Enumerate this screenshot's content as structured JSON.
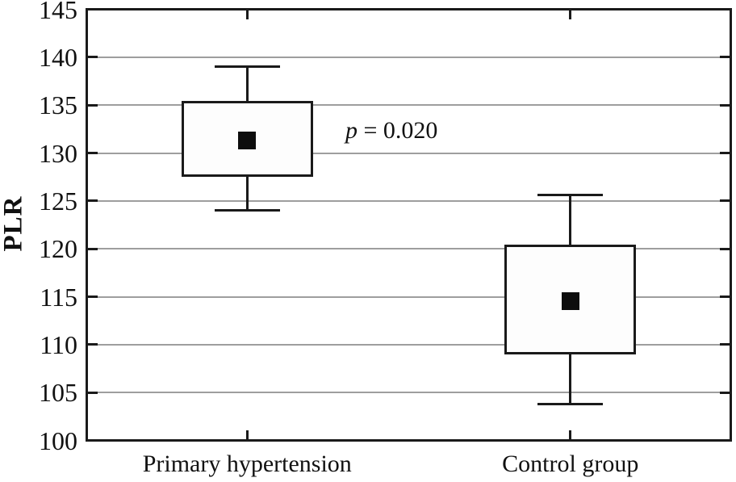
{
  "chart_data": {
    "type": "box",
    "title": "",
    "ylabel": "PLR",
    "xlabel": "",
    "ylim": [
      100,
      145
    ],
    "yticks": [
      100,
      105,
      110,
      115,
      120,
      125,
      130,
      135,
      140,
      145
    ],
    "grid": "horizontal gray lines at each y tick",
    "legend": "none",
    "marker_meaning": "filled black square = mean",
    "categories": [
      "Primary hypertension",
      "Control group"
    ],
    "groups": [
      {
        "label": "Primary hypertension",
        "whisker_low": 124.0,
        "box_low": 127.6,
        "mean": 131.3,
        "box_high": 135.3,
        "whisker_high": 139.0
      },
      {
        "label": "Control group",
        "whisker_low": 103.8,
        "box_low": 109.1,
        "mean": 114.5,
        "box_high": 120.3,
        "whisker_high": 125.6
      }
    ],
    "annotation": {
      "text": "p = 0.020",
      "symbol": "p",
      "rest": " = 0.020",
      "x_frac": 0.402,
      "y_value": 132.3
    },
    "colors": {
      "box_fill": "#fdfdfd",
      "line": "#1a1a1a",
      "mean_marker": "#0d0d0d",
      "gridline": "#9e9e9e",
      "text": "#111111"
    }
  }
}
